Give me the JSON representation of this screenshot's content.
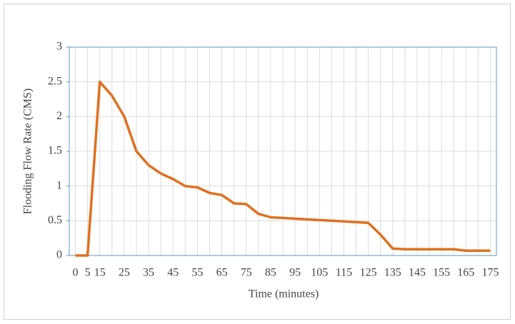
{
  "chart_data": {
    "type": "line",
    "x_label": "Time (minutes)",
    "y_label": "Flooding Flow Rate (CMS)",
    "categories": [
      "0",
      "5",
      "15",
      null,
      "25",
      null,
      "35",
      null,
      "45",
      null,
      "55",
      null,
      "65",
      null,
      "75",
      null,
      "85",
      null,
      "95",
      null,
      "105",
      null,
      "115",
      null,
      "125",
      null,
      "135",
      null,
      "145",
      null,
      "155",
      null,
      "165",
      null,
      "175"
    ],
    "series": [
      {
        "color": "#e0701e",
        "values": [
          0,
          0,
          2.5,
          2.3,
          2.0,
          1.5,
          1.3,
          1.18,
          1.1,
          1.0,
          0.98,
          0.9,
          0.87,
          0.75,
          0.74,
          0.6,
          0.55,
          0.54,
          0.53,
          0.52,
          0.51,
          0.5,
          0.49,
          0.48,
          0.47,
          0.3,
          0.1,
          0.09,
          0.09,
          0.09,
          0.09,
          0.09,
          0.07,
          0.07,
          0.07
        ]
      }
    ],
    "ylim": [
      0,
      3
    ],
    "yticks": [
      0,
      0.5,
      1,
      1.5,
      2,
      2.5,
      3
    ],
    "grid": true
  }
}
